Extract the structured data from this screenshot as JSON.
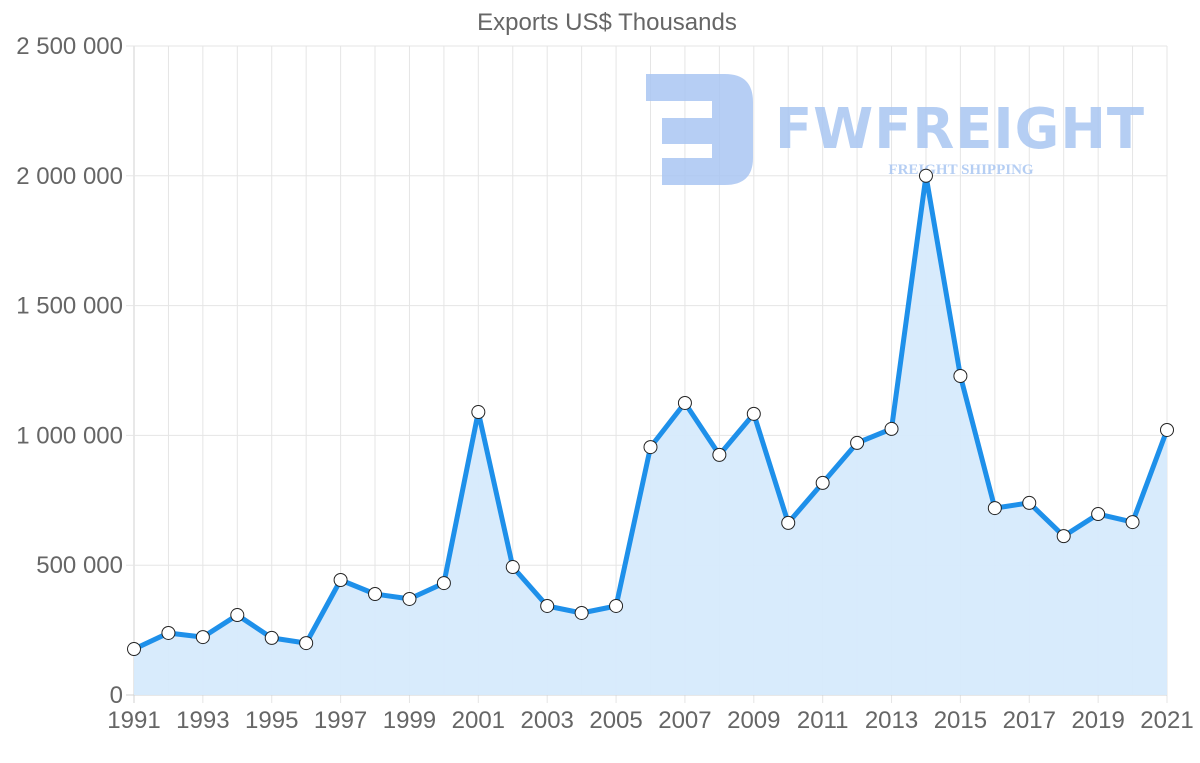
{
  "chart_data": {
    "type": "area",
    "title": "Exports US$ Thousands",
    "xlabel": "",
    "ylabel": "",
    "ylim": [
      0,
      2500000
    ],
    "y_ticks": [
      0,
      500000,
      1000000,
      1500000,
      2000000,
      2500000
    ],
    "y_tick_labels": [
      "0",
      "500 000",
      "1 000 000",
      "1 500 000",
      "2 000 000",
      "2 500 000"
    ],
    "x_tick_labels": [
      "1991",
      "1993",
      "1995",
      "1997",
      "1999",
      "2001",
      "2003",
      "2005",
      "2007",
      "2009",
      "2011",
      "2013",
      "2015",
      "2017",
      "2019",
      "2021"
    ],
    "grid": true,
    "legend": null,
    "categories": [
      "1991",
      "1992",
      "1993",
      "1994",
      "1995",
      "1996",
      "1997",
      "1998",
      "1999",
      "2000",
      "2001",
      "2002",
      "2003",
      "2004",
      "2005",
      "2006",
      "2007",
      "2008",
      "2009",
      "2010",
      "2011",
      "2012",
      "2013",
      "2014",
      "2015",
      "2016",
      "2017",
      "2018",
      "2019",
      "2020",
      "2021"
    ],
    "series": [
      {
        "name": "Exports US$ Thousands",
        "values": [
          177000,
          239000,
          223000,
          308000,
          220000,
          200000,
          443000,
          389000,
          370000,
          431000,
          1090000,
          493000,
          343000,
          316000,
          343000,
          955000,
          1125000,
          925000,
          1083000,
          663000,
          817000,
          971000,
          1025000,
          2000000,
          1229000,
          720000,
          740000,
          612000,
          697000,
          666000,
          1021000
        ]
      }
    ],
    "colors": {
      "line": "#1e90ea",
      "fill": "#d6eafc",
      "marker_fill": "#ffffff",
      "marker_stroke": "#222222"
    }
  },
  "watermark": {
    "brand": "FWFREIGHT",
    "tagline": "FREIGHT SHIPPING",
    "color": "#a9c6f2"
  }
}
